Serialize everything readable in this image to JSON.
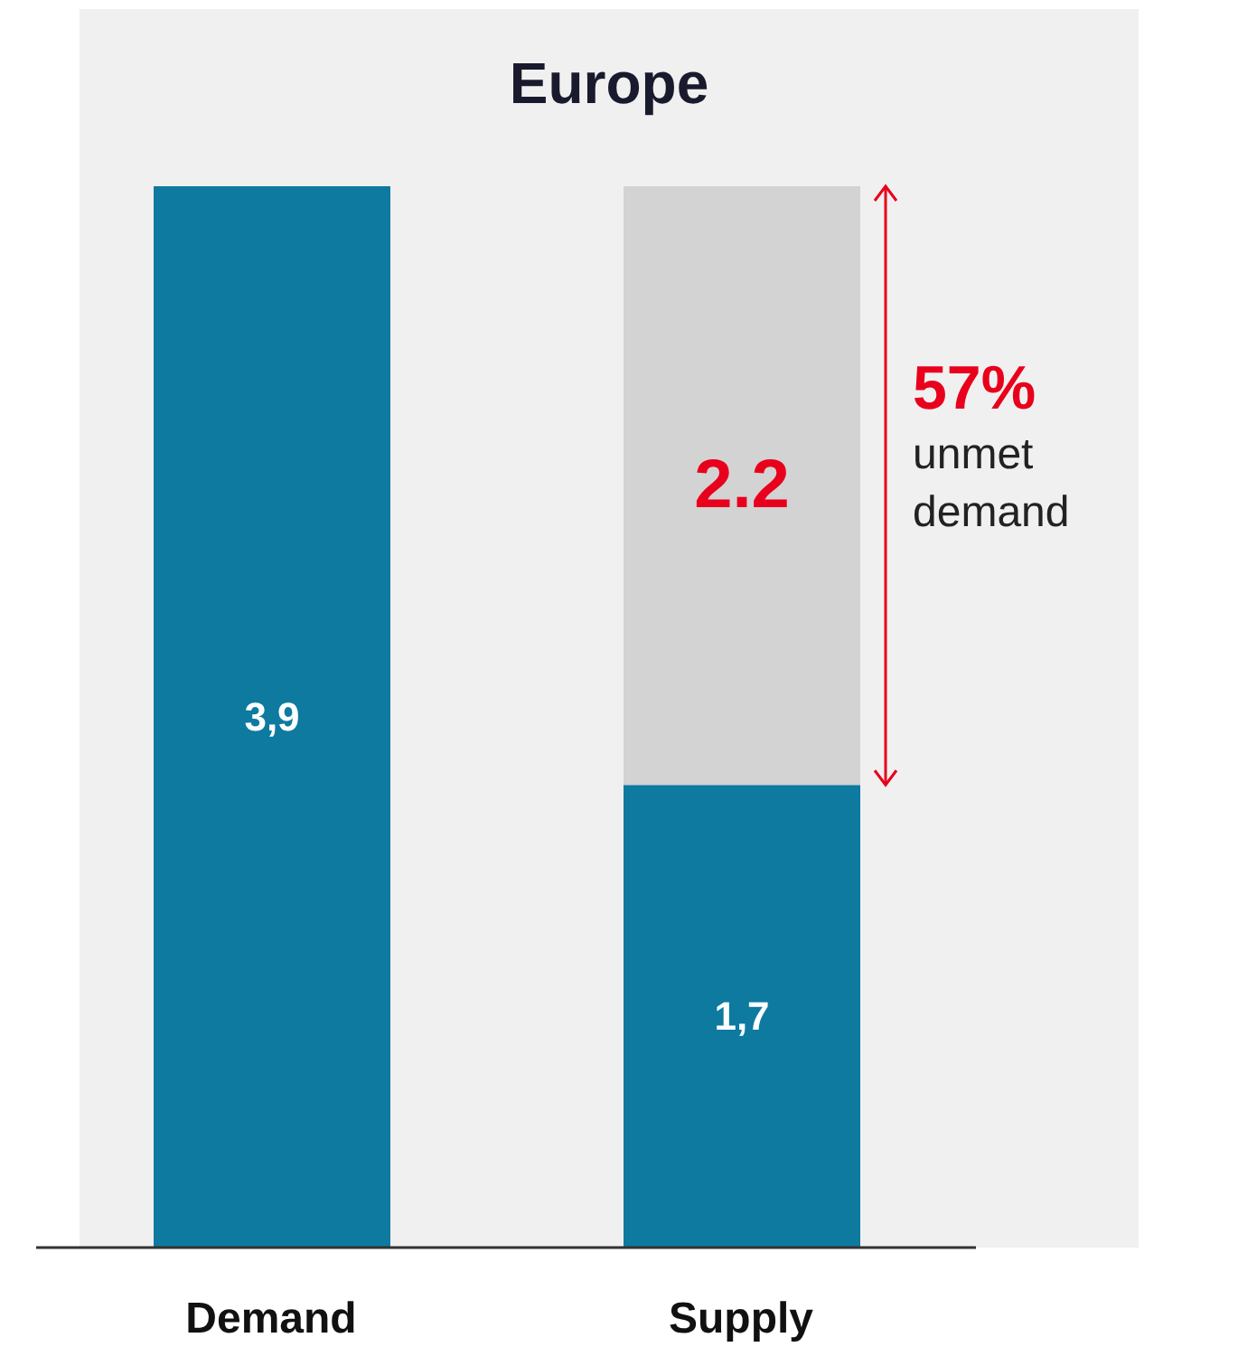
{
  "chart_data": {
    "type": "bar",
    "title": "Europe",
    "stacked": true,
    "categories": [
      "Demand",
      "Supply"
    ],
    "series": [
      {
        "color": "#0e7aa0",
        "values": [
          3.9,
          1.7
        ],
        "value_labels": [
          "3,9",
          "1,7"
        ]
      },
      {
        "color": "#d3d3d3",
        "values": [
          null,
          2.2
        ],
        "value_labels": [
          null,
          "2.2"
        ]
      }
    ],
    "annotations": [
      "57%",
      "unmet demand"
    ]
  }
}
